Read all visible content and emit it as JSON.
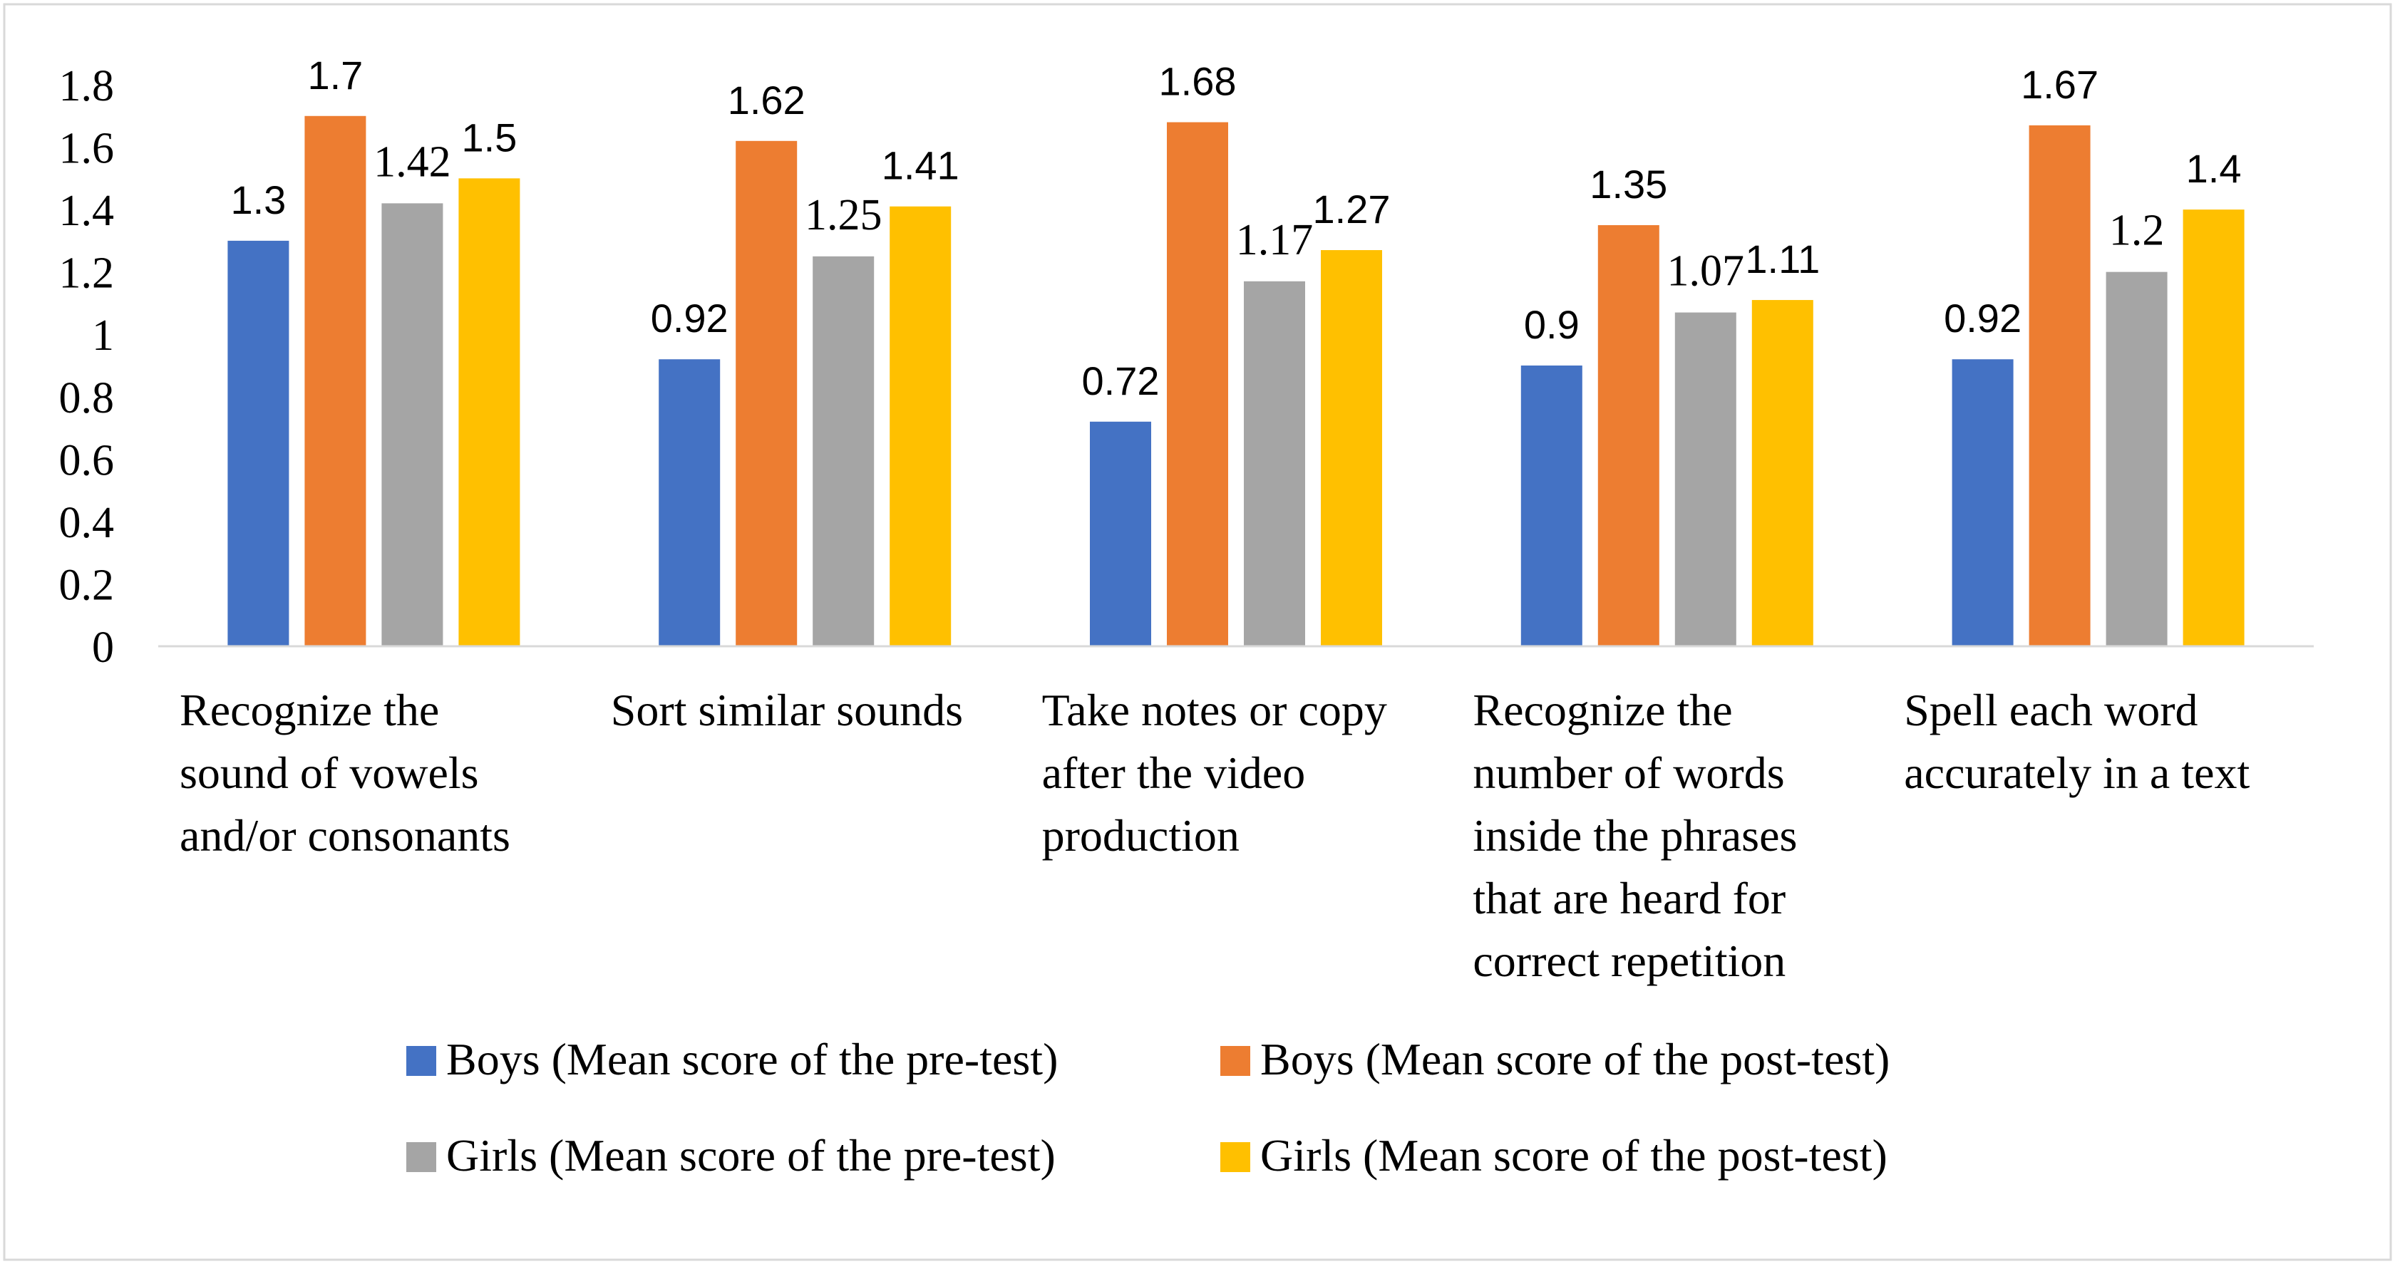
{
  "chart_data": {
    "type": "bar",
    "title": "",
    "xlabel": "",
    "ylabel": "",
    "ylim": [
      0,
      1.8
    ],
    "yticks": [
      "0",
      "0.2",
      "0.4",
      "0.6",
      "0.8",
      "1",
      "1.2",
      "1.4",
      "1.6",
      "1.8"
    ],
    "ytick_values": [
      0,
      0.2,
      0.4,
      0.6,
      0.8,
      1,
      1.2,
      1.4,
      1.6,
      1.8
    ],
    "grid": false,
    "legend_position": "bottom",
    "categories": [
      [
        "Recognize the",
        "sound of vowels",
        "and/or consonants"
      ],
      [
        "Sort similar sounds"
      ],
      [
        "Take notes or copy",
        "after the video",
        "production"
      ],
      [
        "Recognize the",
        "number of words",
        "inside the phrases",
        "that are heard for",
        "correct repetition"
      ],
      [
        "Spell each word",
        "accurately in a text"
      ]
    ],
    "series": [
      {
        "name": "Boys (Mean score of the pre-test)",
        "color": "#4472C4",
        "values": [
          1.3,
          0.92,
          0.72,
          0.9,
          0.92
        ],
        "labels": [
          "1.3",
          "0.92",
          "0.72",
          "0.9",
          "0.92"
        ]
      },
      {
        "name": "Boys (Mean score of the post-test)",
        "color": "#ED7D31",
        "values": [
          1.7,
          1.62,
          1.68,
          1.35,
          1.67
        ],
        "labels": [
          "1.7",
          "1.62",
          "1.68",
          "1.35",
          "1.67"
        ]
      },
      {
        "name": "Girls (Mean score of the pre-test)",
        "color": "#A5A5A5",
        "values": [
          1.42,
          1.25,
          1.17,
          1.07,
          1.2
        ],
        "labels": [
          "1.42",
          "1.25",
          "1.17",
          "1.07",
          "1.2"
        ]
      },
      {
        "name": "Girls (Mean score of the post-test)",
        "color": "#FFC000",
        "values": [
          1.5,
          1.41,
          1.27,
          1.11,
          1.4
        ],
        "labels": [
          "1.5",
          "1.41",
          "1.27",
          "1.11",
          "1.4"
        ]
      }
    ]
  }
}
